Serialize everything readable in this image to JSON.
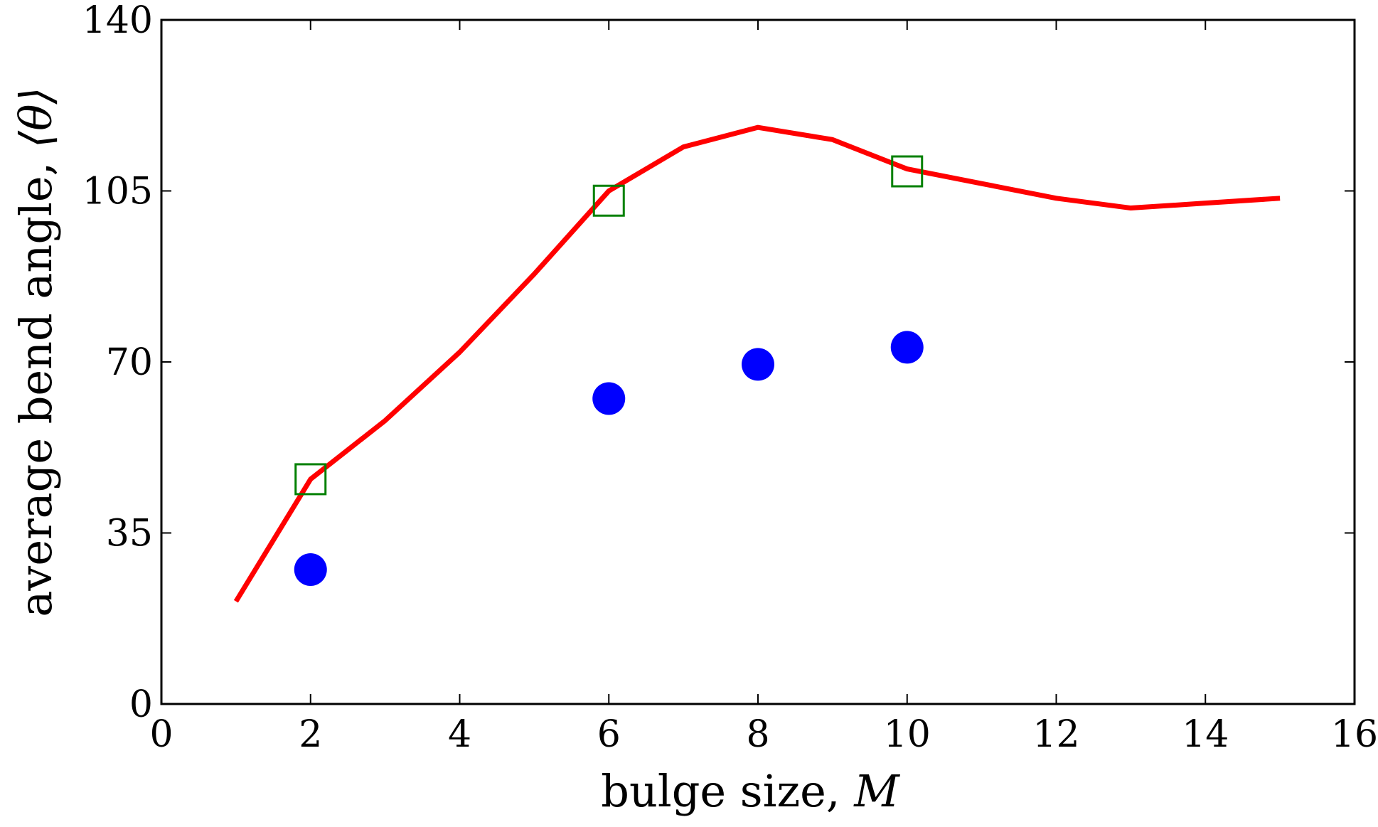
{
  "chart_data": {
    "type": "line",
    "title": "",
    "xlabel": "bulge size, ",
    "xlabel_var": "M",
    "ylabel": "average bend angle, ",
    "ylabel_var": "⟨θ⟩",
    "xlim": [
      0,
      16
    ],
    "ylim": [
      0,
      140
    ],
    "xticks": [
      0,
      2,
      4,
      6,
      8,
      10,
      12,
      14,
      16
    ],
    "yticks": [
      0,
      35,
      70,
      105,
      140
    ],
    "xtick_labels": [
      "0",
      "2",
      "4",
      "6",
      "8",
      "10",
      "12",
      "14",
      "16"
    ],
    "ytick_labels": [
      "0",
      "35",
      "70",
      "105",
      "140"
    ],
    "grid": false,
    "series": [
      {
        "name": "line",
        "kind": "line",
        "color": "#ff0000",
        "x": [
          1,
          2,
          3,
          4,
          5,
          6,
          7,
          8,
          9,
          10,
          11,
          12,
          13,
          14,
          15
        ],
        "y": [
          21,
          46,
          58,
          72,
          88,
          105,
          114,
          118,
          115.5,
          109.5,
          106.5,
          103.5,
          101.5,
          102.5,
          103.5
        ]
      },
      {
        "name": "squares",
        "kind": "scatter",
        "marker": "square",
        "color": "#008000",
        "x": [
          2,
          6,
          10
        ],
        "y": [
          46,
          103,
          109
        ]
      },
      {
        "name": "circles",
        "kind": "scatter",
        "marker": "circle",
        "color": "#0000ff",
        "x": [
          2,
          6,
          8,
          10
        ],
        "y": [
          27.5,
          62.5,
          69.5,
          73
        ]
      }
    ]
  }
}
